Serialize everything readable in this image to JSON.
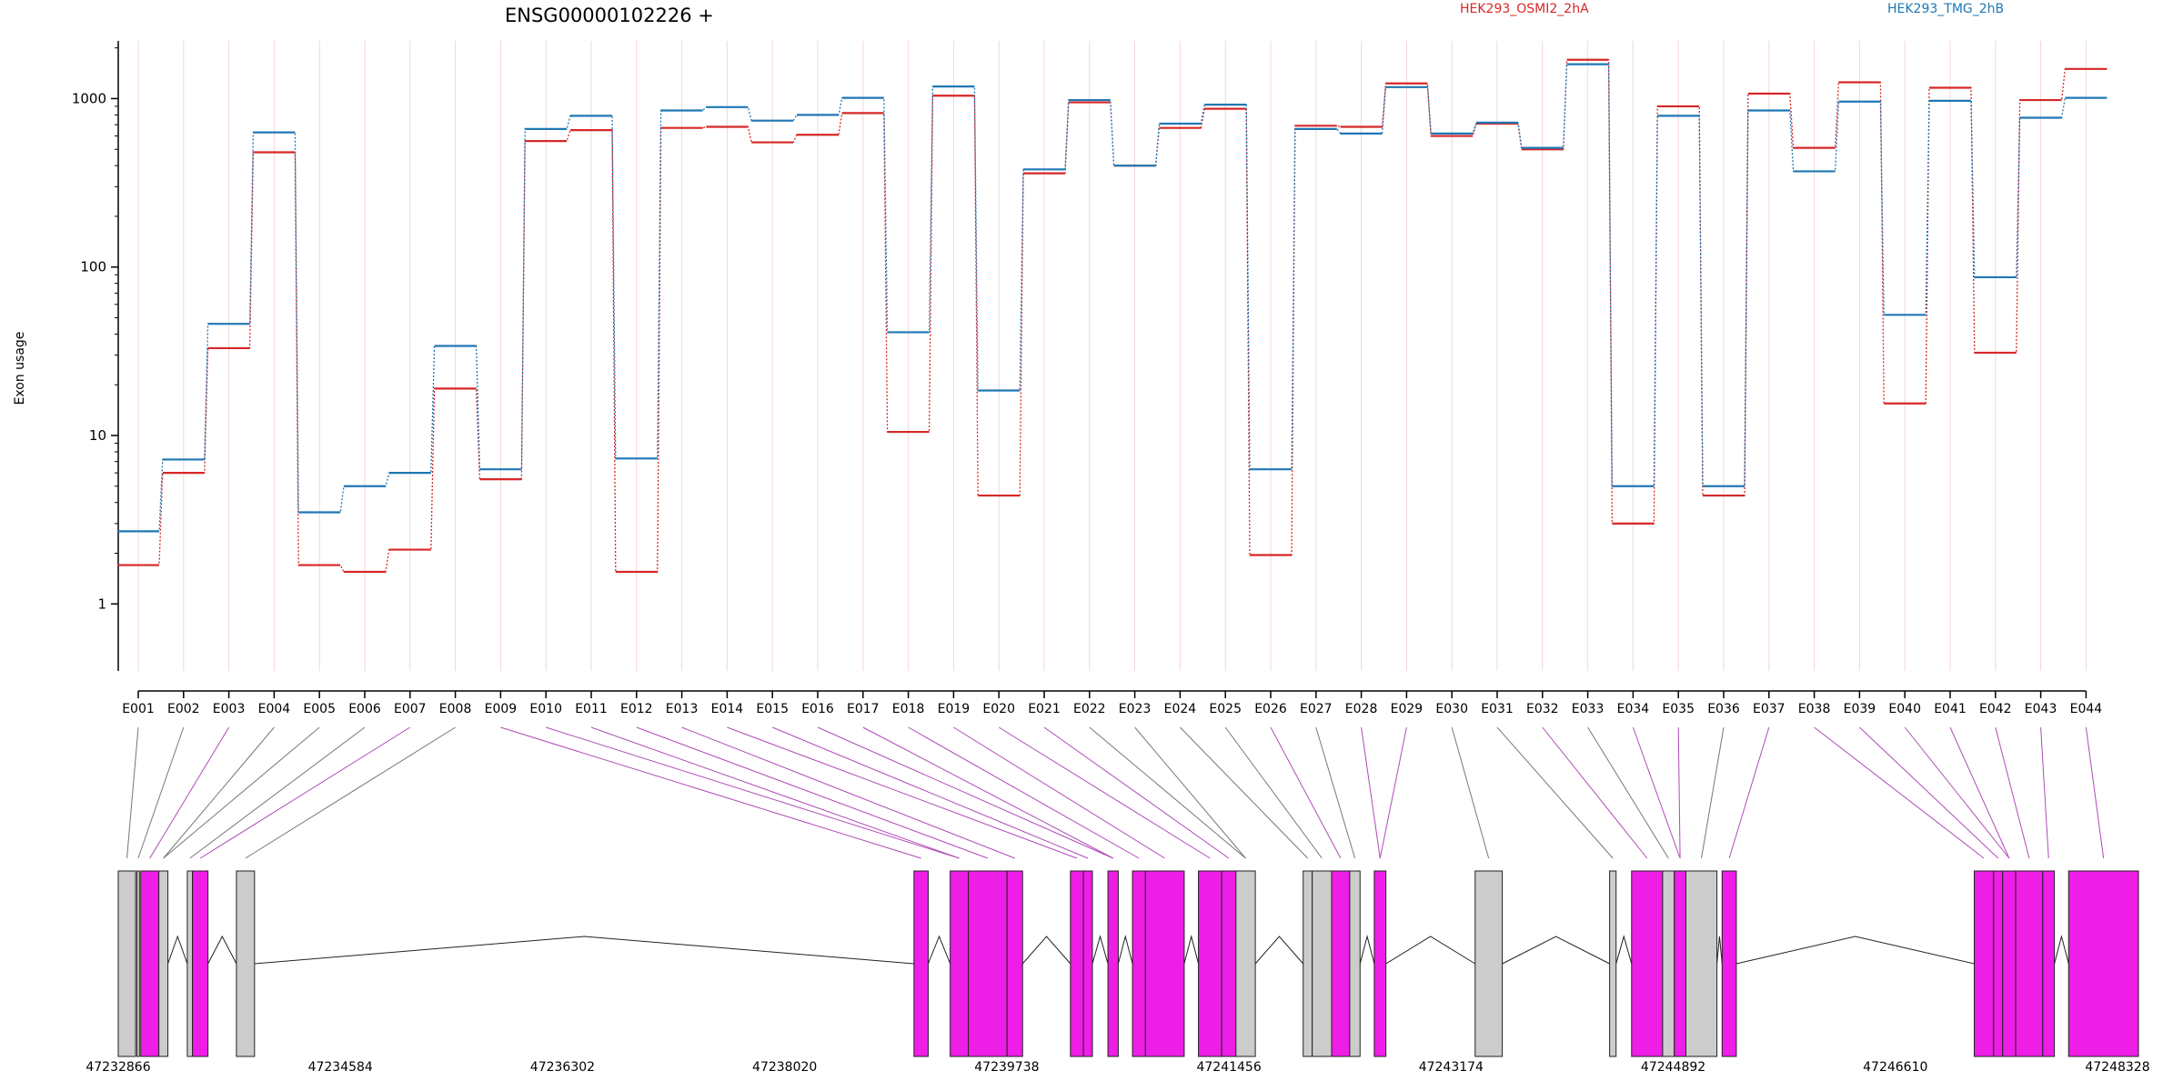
{
  "title": "ENSG00000102226 +",
  "chart_data": {
    "type": "line",
    "title": "ENSG00000102226 +",
    "ylabel": "Exon usage",
    "yscale": "log",
    "ylim": [
      0.4,
      2200
    ],
    "yticks": [
      1,
      10,
      100,
      1000
    ],
    "ytick_labels": [
      "1",
      "10",
      "100",
      "1000"
    ],
    "grid": true,
    "legend_position": "top",
    "categories": [
      "E001",
      "E002",
      "E003",
      "E004",
      "E005",
      "E006",
      "E007",
      "E008",
      "E009",
      "E010",
      "E011",
      "E012",
      "E013",
      "E014",
      "E015",
      "E016",
      "E017",
      "E018",
      "E019",
      "E020",
      "E021",
      "E022",
      "E023",
      "E024",
      "E025",
      "E026",
      "E027",
      "E028",
      "E029",
      "E030",
      "E031",
      "E032",
      "E033",
      "E034",
      "E035",
      "E036",
      "E037",
      "E038",
      "E039",
      "E040",
      "E041",
      "E042",
      "E043",
      "E044"
    ],
    "series": [
      {
        "name": "HEK293_OSMI2_2hA",
        "color": "#d62728",
        "values": [
          1.7,
          6,
          33,
          480,
          1.7,
          1.55,
          2.1,
          19,
          5.5,
          560,
          650,
          1.55,
          670,
          680,
          550,
          610,
          820,
          10.5,
          1040,
          4.4,
          360,
          950,
          400,
          670,
          870,
          1.95,
          690,
          680,
          1230,
          600,
          710,
          500,
          1700,
          3,
          900,
          4.4,
          1070,
          510,
          1250,
          15.5,
          1160,
          31,
          980,
          1500
        ]
      },
      {
        "name": "HEK293_TMG_2hB",
        "color": "#1f77b4",
        "values": [
          2.7,
          7.2,
          46,
          630,
          3.5,
          5,
          6,
          34,
          6.3,
          660,
          790,
          7.3,
          850,
          890,
          740,
          800,
          1010,
          41,
          1180,
          18.5,
          380,
          980,
          400,
          710,
          920,
          6.3,
          660,
          620,
          1170,
          620,
          720,
          510,
          1600,
          5,
          790,
          5,
          850,
          370,
          960,
          52,
          970,
          87,
          770,
          1010
        ]
      }
    ],
    "gene_model": {
      "tick_labels": [
        "47232866",
        "47234584",
        "47236302",
        "47238020",
        "47239738",
        "47241456",
        "47243174",
        "47244892",
        "47246610",
        "47248328"
      ],
      "region_start": 47232866,
      "region_end": 47248328,
      "color_highlight": "#ee1ee6",
      "color_normal": "#cccccc",
      "exons": [
        {
          "start": 47232866,
          "end": 47233000,
          "type": "normal"
        },
        {
          "start": 47233010,
          "end": 47233030,
          "type": "normal"
        },
        {
          "start": 47233040,
          "end": 47233180,
          "type": "highlight"
        },
        {
          "start": 47233180,
          "end": 47233250,
          "type": "normal"
        },
        {
          "start": 47233400,
          "end": 47233440,
          "type": "normal"
        },
        {
          "start": 47233440,
          "end": 47233560,
          "type": "highlight"
        },
        {
          "start": 47233780,
          "end": 47233920,
          "type": "normal"
        },
        {
          "start": 47239020,
          "end": 47239130,
          "type": "highlight"
        },
        {
          "start": 47239300,
          "end": 47239440,
          "type": "highlight"
        },
        {
          "start": 47239440,
          "end": 47239740,
          "type": "highlight"
        },
        {
          "start": 47239740,
          "end": 47239860,
          "type": "highlight"
        },
        {
          "start": 47240230,
          "end": 47240330,
          "type": "highlight"
        },
        {
          "start": 47240330,
          "end": 47240400,
          "type": "highlight"
        },
        {
          "start": 47240520,
          "end": 47240600,
          "type": "highlight"
        },
        {
          "start": 47240710,
          "end": 47240810,
          "type": "highlight"
        },
        {
          "start": 47240810,
          "end": 47241110,
          "type": "highlight"
        },
        {
          "start": 47241220,
          "end": 47241400,
          "type": "highlight"
        },
        {
          "start": 47241400,
          "end": 47241510,
          "type": "highlight"
        },
        {
          "start": 47241510,
          "end": 47241660,
          "type": "normal"
        },
        {
          "start": 47242030,
          "end": 47242100,
          "type": "normal"
        },
        {
          "start": 47242100,
          "end": 47242250,
          "type": "normal"
        },
        {
          "start": 47242250,
          "end": 47242390,
          "type": "highlight"
        },
        {
          "start": 47242390,
          "end": 47242470,
          "type": "normal"
        },
        {
          "start": 47242580,
          "end": 47242670,
          "type": "highlight"
        },
        {
          "start": 47243360,
          "end": 47243570,
          "type": "normal"
        },
        {
          "start": 47244400,
          "end": 47244450,
          "type": "normal"
        },
        {
          "start": 47244570,
          "end": 47244810,
          "type": "highlight"
        },
        {
          "start": 47244810,
          "end": 47244900,
          "type": "normal"
        },
        {
          "start": 47244900,
          "end": 47244990,
          "type": "highlight"
        },
        {
          "start": 47244990,
          "end": 47245230,
          "type": "normal"
        },
        {
          "start": 47245270,
          "end": 47245380,
          "type": "highlight"
        },
        {
          "start": 47247220,
          "end": 47247370,
          "type": "highlight"
        },
        {
          "start": 47247370,
          "end": 47247440,
          "type": "highlight"
        },
        {
          "start": 47247440,
          "end": 47247540,
          "type": "highlight"
        },
        {
          "start": 47247540,
          "end": 47247750,
          "type": "highlight"
        },
        {
          "start": 47247750,
          "end": 47247840,
          "type": "highlight"
        },
        {
          "start": 47247950,
          "end": 47248490,
          "type": "highlight"
        }
      ]
    }
  }
}
